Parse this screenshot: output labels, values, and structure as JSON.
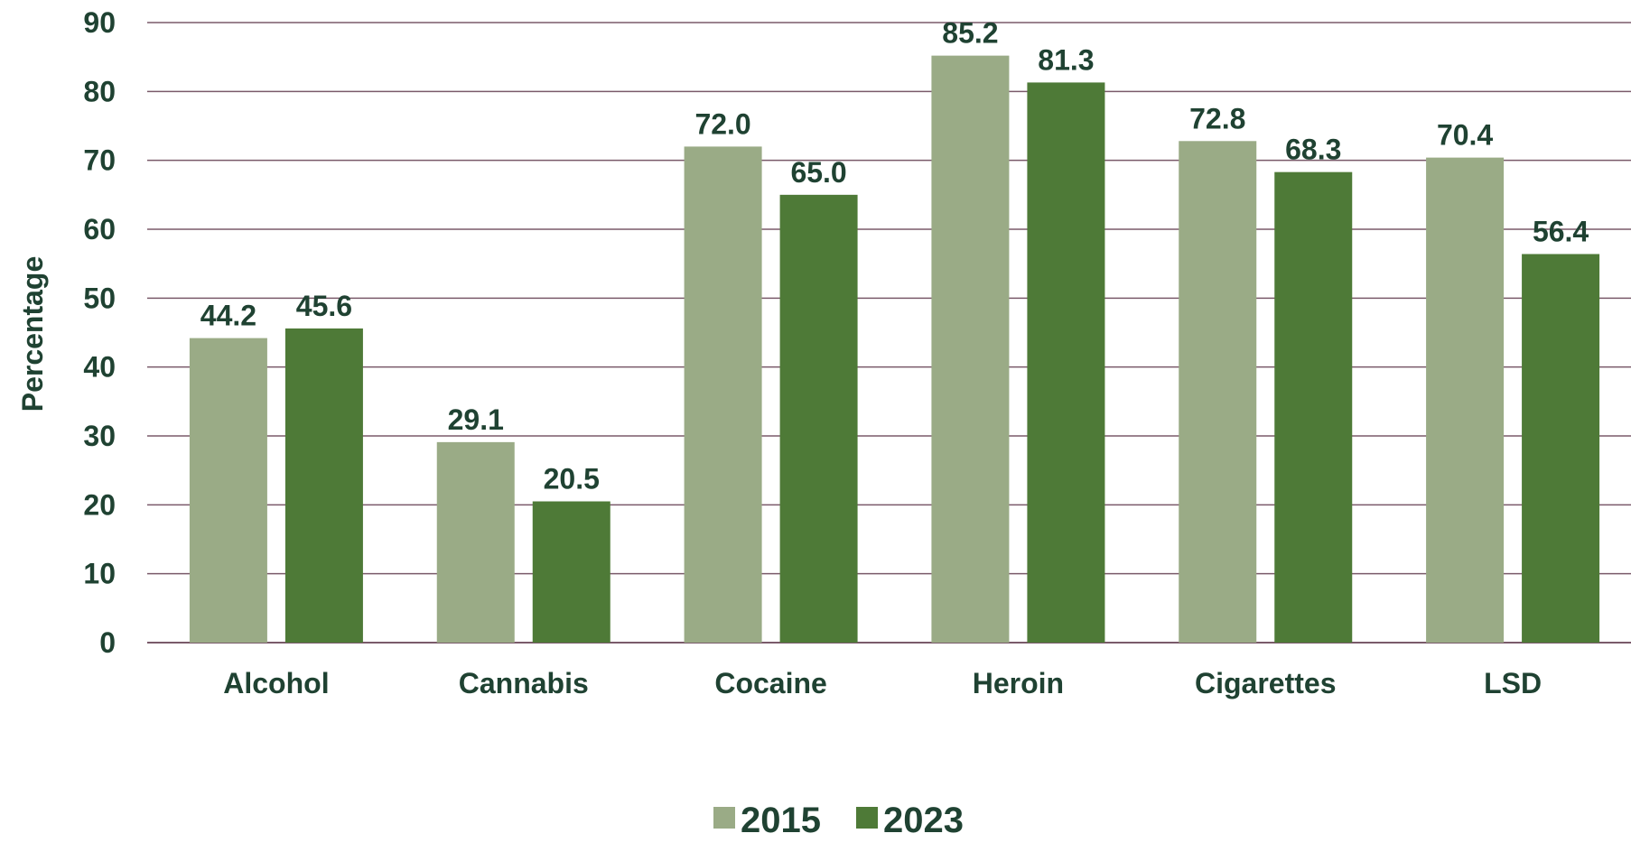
{
  "chart_data": {
    "type": "bar",
    "title": "",
    "xlabel": "",
    "ylabel": "Percentage",
    "ylim": [
      0,
      90
    ],
    "y_ticks": [
      0,
      10,
      20,
      30,
      40,
      50,
      60,
      70,
      80,
      90
    ],
    "grid": true,
    "legend_position": "bottom-center",
    "categories": [
      "Alcohol",
      "Cannabis",
      "Cocaine",
      "Heroin",
      "Cigarettes",
      "LSD"
    ],
    "series": [
      {
        "name": "2015",
        "color": "#9aab86",
        "values": [
          44.2,
          29.1,
          72.0,
          85.2,
          72.8,
          70.4
        ]
      },
      {
        "name": "2023",
        "color": "#4e7a37",
        "values": [
          45.6,
          20.5,
          65.0,
          81.3,
          68.3,
          56.4
        ]
      }
    ],
    "text_color": "#1f4232",
    "gridline_color": "#7a5a6a"
  }
}
